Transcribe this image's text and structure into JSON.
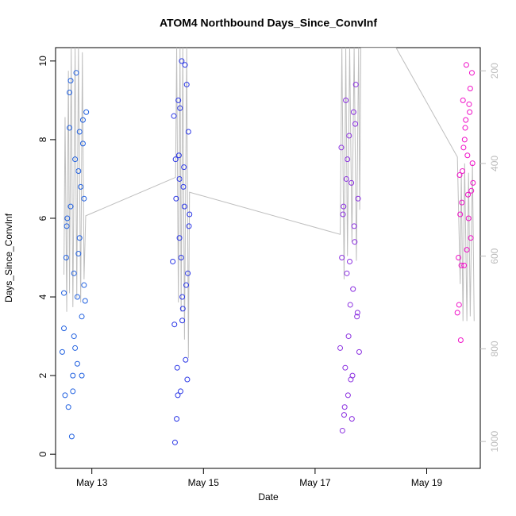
{
  "chart_data": {
    "type": "scatter",
    "title": "ATOM4 Northbound Days_Since_ConvInf",
    "xlabel": "Date",
    "ylabel": "Days_Since_ConvInf",
    "xlim": [
      12.35,
      19.96
    ],
    "xticks": [
      {
        "value": 13,
        "label": "May 13"
      },
      {
        "value": 15,
        "label": "May 15"
      },
      {
        "value": 17,
        "label": "May 17"
      },
      {
        "value": 19,
        "label": "May 19"
      }
    ],
    "ylim": [
      -0.36,
      10.34
    ],
    "yticks": [
      0,
      2,
      4,
      6,
      8,
      10
    ],
    "y2lim": [
      1058,
      150
    ],
    "y2ticks": [
      200,
      400,
      600,
      800,
      1000
    ],
    "series": [
      {
        "color": "#2060e0",
        "x": [
          12.47,
          12.5,
          12.52,
          12.55,
          12.58,
          12.6,
          12.62,
          12.64,
          12.66,
          12.68,
          12.7,
          12.72,
          12.74,
          12.76,
          12.78,
          12.8,
          12.82,
          12.84,
          12.86,
          12.88,
          12.9,
          12.5,
          12.56,
          12.6,
          12.66,
          12.7,
          12.74,
          12.78,
          12.82,
          12.86,
          12.62,
          12.54,
          12.68,
          12.76,
          12.84
        ],
        "values": [
          2.6,
          4.1,
          1.5,
          5.8,
          1.2,
          9.2,
          6.3,
          0.45,
          2.0,
          4.6,
          7.5,
          9.7,
          2.3,
          5.1,
          8.2,
          6.8,
          3.5,
          7.9,
          4.3,
          3.9,
          8.7,
          3.2,
          6.0,
          8.3,
          1.6,
          2.7,
          4.0,
          5.5,
          2.0,
          6.5,
          9.5,
          5.0,
          3.0,
          7.2,
          8.5
        ]
      },
      {
        "color": "#2a36e6",
        "x": [
          14.45,
          14.47,
          14.49,
          14.51,
          14.53,
          14.55,
          14.57,
          14.59,
          14.61,
          14.63,
          14.65,
          14.67,
          14.69,
          14.71,
          14.73,
          14.75,
          14.48,
          14.52,
          14.56,
          14.6,
          14.64,
          14.68,
          14.72,
          14.5,
          14.54,
          14.58,
          14.62,
          14.66,
          14.7,
          14.74,
          14.62,
          14.57
        ],
        "values": [
          4.9,
          8.6,
          0.3,
          6.5,
          2.2,
          9.0,
          5.5,
          1.6,
          10.0,
          3.7,
          7.3,
          9.9,
          4.3,
          1.9,
          8.2,
          6.1,
          3.3,
          0.9,
          7.6,
          5.0,
          6.8,
          2.4,
          4.6,
          7.5,
          1.5,
          8.8,
          4.0,
          6.3,
          9.4,
          5.8,
          3.4,
          7.0
        ]
      },
      {
        "color": "#8a2ee0",
        "x": [
          17.45,
          17.47,
          17.49,
          17.51,
          17.53,
          17.55,
          17.57,
          17.59,
          17.61,
          17.63,
          17.65,
          17.67,
          17.69,
          17.71,
          17.73,
          17.75,
          17.77,
          17.79,
          17.48,
          17.52,
          17.56,
          17.6,
          17.64,
          17.68,
          17.72,
          17.76,
          17.5,
          17.54,
          17.58,
          17.62,
          17.66,
          17.7
        ],
        "values": [
          2.7,
          7.8,
          0.6,
          6.3,
          1.2,
          9.0,
          4.6,
          1.5,
          8.1,
          3.8,
          6.9,
          2.0,
          8.7,
          5.4,
          9.4,
          3.5,
          6.5,
          2.6,
          5.0,
          1.0,
          7.0,
          3.0,
          1.9,
          4.2,
          8.4,
          3.6,
          6.1,
          2.2,
          7.5,
          4.9,
          0.9,
          5.8
        ]
      },
      {
        "color": "#f010c8",
        "x": [
          19.55,
          19.57,
          19.59,
          19.61,
          19.63,
          19.65,
          19.67,
          19.69,
          19.71,
          19.73,
          19.75,
          19.77,
          19.79,
          19.81,
          19.83,
          19.58,
          19.62,
          19.66,
          19.7,
          19.74,
          19.78,
          19.82,
          19.6,
          19.64,
          19.68,
          19.72,
          19.76,
          19.8
        ],
        "values": [
          3.6,
          5.0,
          7.1,
          2.9,
          6.4,
          9.0,
          4.8,
          8.3,
          9.9,
          7.6,
          6.0,
          8.7,
          5.5,
          9.7,
          6.9,
          3.8,
          4.8,
          7.8,
          8.5,
          6.6,
          9.3,
          7.4,
          6.1,
          7.2,
          8.0,
          5.2,
          8.9,
          6.7
        ]
      },
      {
        "color": "#bebebe",
        "axis": "y2",
        "x": [
          12.5,
          12.52,
          12.55,
          12.58,
          12.6,
          12.63,
          12.66,
          12.7,
          12.73,
          12.76,
          12.8,
          12.83,
          12.86,
          12.89,
          14.5,
          14.52,
          14.55,
          14.58,
          14.6,
          14.63,
          14.66,
          14.7,
          14.73,
          14.75,
          17.45,
          17.48,
          17.52,
          17.55,
          17.58,
          17.62,
          17.66,
          17.7,
          17.74,
          17.78,
          17.8,
          17.82,
          18.45,
          19.55,
          19.6,
          19.62,
          19.65,
          19.68,
          19.72,
          19.75,
          19.78,
          19.82,
          19.85
        ],
        "values": [
          640,
          300,
          720,
          200,
          680,
          150,
          710,
          150,
          690,
          150,
          700,
          160,
          650,
          513,
          430,
          150,
          700,
          150,
          720,
          150,
          780,
          150,
          820,
          462,
          553,
          150,
          650,
          150,
          600,
          150,
          570,
          150,
          610,
          150,
          500,
          150,
          150,
          386,
          660,
          420,
          740,
          400,
          740,
          420,
          730,
          400,
          740
        ]
      }
    ]
  }
}
